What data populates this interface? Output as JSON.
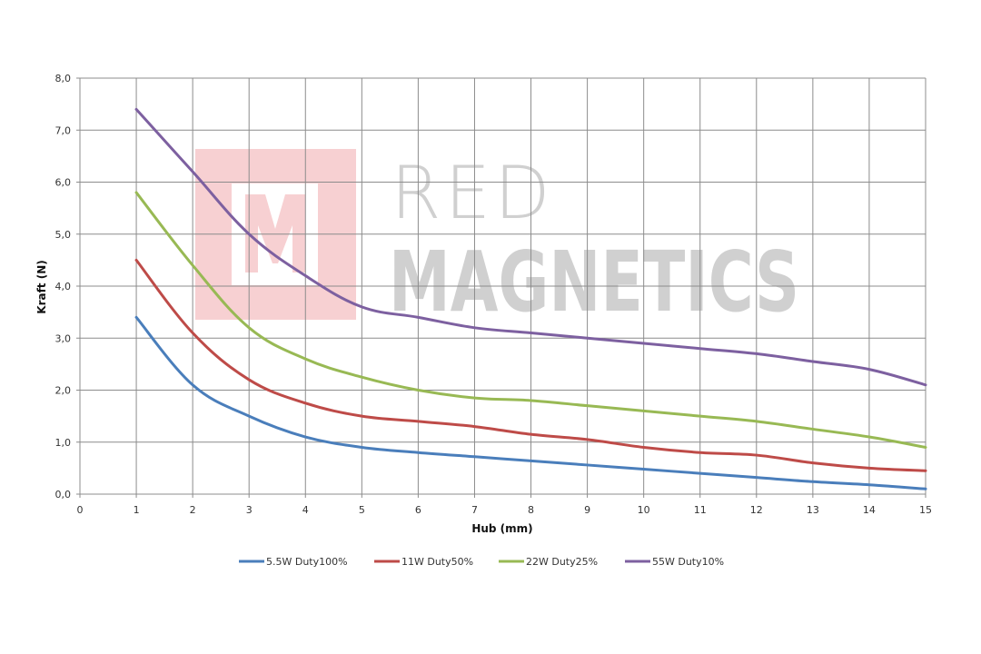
{
  "watermark": {
    "line1": "RED",
    "line2": "MAGNETICS"
  },
  "chart_data": {
    "type": "line",
    "xlabel": "Hub (mm)",
    "ylabel": "Kraft (N)",
    "xlim": [
      0,
      15
    ],
    "ylim": [
      0,
      8
    ],
    "x_ticks": [
      "0",
      "1",
      "2",
      "3",
      "4",
      "5",
      "6",
      "7",
      "8",
      "9",
      "10",
      "11",
      "12",
      "13",
      "14",
      "15"
    ],
    "y_ticks": [
      "0,0",
      "1,0",
      "2,0",
      "3,0",
      "4,0",
      "5,0",
      "6,0",
      "7,0",
      "8,0"
    ],
    "grid": true,
    "legend_position": "bottom",
    "x": [
      1,
      2,
      3,
      4,
      5,
      6,
      7,
      8,
      9,
      10,
      11,
      12,
      13,
      14,
      15
    ],
    "series": [
      {
        "name": "5.5W Duty100%",
        "color": "#4a7ebb",
        "values": [
          3.4,
          2.1,
          1.5,
          1.1,
          0.9,
          0.8,
          0.72,
          0.64,
          0.56,
          0.48,
          0.4,
          0.32,
          0.24,
          0.18,
          0.1
        ]
      },
      {
        "name": "11W Duty50%",
        "color": "#be4b48",
        "values": [
          4.5,
          3.1,
          2.2,
          1.75,
          1.5,
          1.4,
          1.3,
          1.15,
          1.05,
          0.9,
          0.8,
          0.75,
          0.6,
          0.5,
          0.45
        ]
      },
      {
        "name": "22W Duty25%",
        "color": "#98b954",
        "values": [
          5.8,
          4.4,
          3.2,
          2.6,
          2.25,
          2.0,
          1.85,
          1.8,
          1.7,
          1.6,
          1.5,
          1.4,
          1.25,
          1.1,
          0.9
        ]
      },
      {
        "name": "55W Duty10%",
        "color": "#7d60a0",
        "values": [
          7.4,
          6.2,
          5.0,
          4.2,
          3.6,
          3.4,
          3.2,
          3.1,
          3.0,
          2.9,
          2.8,
          2.7,
          2.55,
          2.4,
          2.1
        ]
      }
    ]
  }
}
